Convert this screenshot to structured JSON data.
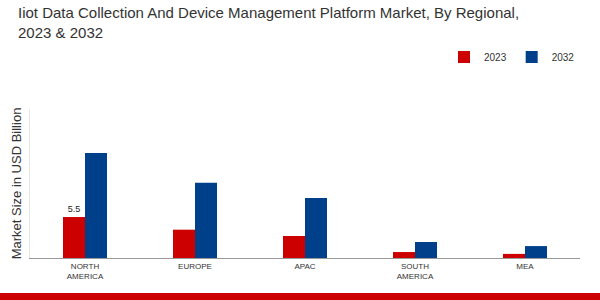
{
  "chart_data": {
    "type": "bar",
    "title": "Iiot Data Collection And Device Management Platform Market, By Regional, 2023 & 2032",
    "y_label": "Market Size in USD Billion",
    "categories": [
      "NORTH AMERICA",
      "EUROPE",
      "APAC",
      "SOUTH AMERICA",
      "MEA"
    ],
    "series": [
      {
        "name": "2023",
        "color": "#cc0000",
        "values": [
          5.5,
          3.8,
          2.95,
          0.8,
          0.55
        ],
        "value_labels": [
          "5.5",
          null,
          null,
          null,
          null
        ]
      },
      {
        "name": "2032",
        "color": "#003f8a",
        "values": [
          14.1,
          10.1,
          8.05,
          2.15,
          1.6
        ]
      }
    ],
    "ylim": [
      0,
      20
    ],
    "tick_labels": "x",
    "grid": false,
    "legend": "top right"
  }
}
